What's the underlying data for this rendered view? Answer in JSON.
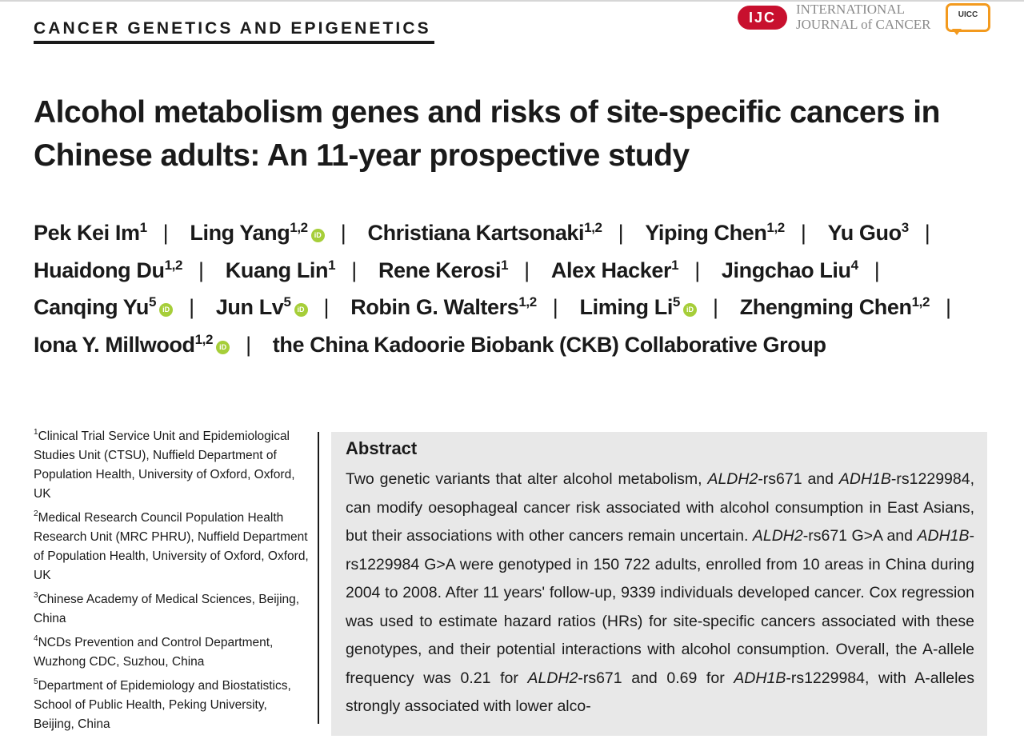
{
  "header": {
    "section_label": "CANCER GENETICS AND EPIGENETICS",
    "journal_abbrev": "IJC",
    "journal_name_line1": "INTERNATIONAL",
    "journal_name_line2": "JOURNAL of CANCER",
    "uicc_label": "UICC",
    "brand_color": "#c8102e",
    "uicc_color": "#f39a1e"
  },
  "title": "Alcohol metabolism genes and risks of site-specific cancers in Chinese adults: An 11-year prospective study",
  "authors": [
    {
      "name": "Pek Kei Im",
      "aff": "1",
      "orcid": false
    },
    {
      "name": "Ling Yang",
      "aff": "1,2",
      "orcid": true
    },
    {
      "name": "Christiana Kartsonaki",
      "aff": "1,2",
      "orcid": false
    },
    {
      "name": "Yiping Chen",
      "aff": "1,2",
      "orcid": false
    },
    {
      "name": "Yu Guo",
      "aff": "3",
      "orcid": false
    },
    {
      "name": "Huaidong Du",
      "aff": "1,2",
      "orcid": false
    },
    {
      "name": "Kuang Lin",
      "aff": "1",
      "orcid": false
    },
    {
      "name": "Rene Kerosi",
      "aff": "1",
      "orcid": false
    },
    {
      "name": "Alex Hacker",
      "aff": "1",
      "orcid": false
    },
    {
      "name": "Jingchao Liu",
      "aff": "4",
      "orcid": false
    },
    {
      "name": "Canqing Yu",
      "aff": "5",
      "orcid": true
    },
    {
      "name": "Jun Lv",
      "aff": "5",
      "orcid": true
    },
    {
      "name": "Robin G. Walters",
      "aff": "1,2",
      "orcid": false
    },
    {
      "name": "Liming Li",
      "aff": "5",
      "orcid": true
    },
    {
      "name": "Zhengming Chen",
      "aff": "1,2",
      "orcid": false
    },
    {
      "name": "Iona Y. Millwood",
      "aff": "1,2",
      "orcid": true
    }
  ],
  "collab_group": "the China Kadoorie Biobank (CKB) Collaborative Group",
  "orcid_icon_label": "iD",
  "orcid_color": "#a6ce39",
  "affiliations": [
    {
      "num": "1",
      "text": "Clinical Trial Service Unit and Epidemiological Studies Unit (CTSU), Nuffield Department of Population Health, University of Oxford, Oxford, UK"
    },
    {
      "num": "2",
      "text": "Medical Research Council Population Health Research Unit (MRC PHRU), Nuffield Department of Population Health, University of Oxford, Oxford, UK"
    },
    {
      "num": "3",
      "text": "Chinese Academy of Medical Sciences, Beijing, China"
    },
    {
      "num": "4",
      "text": "NCDs Prevention and Control Department, Wuzhong CDC, Suzhou, China"
    },
    {
      "num": "5",
      "text": "Department of Epidemiology and Biostatistics, School of Public Health, Peking University, Beijing, China"
    }
  ],
  "abstract": {
    "heading": "Abstract",
    "segments": [
      {
        "t": "Two genetic variants that alter alcohol metabolism, "
      },
      {
        "t": "ALDH2",
        "i": true
      },
      {
        "t": "-rs671 and "
      },
      {
        "t": "ADH1B",
        "i": true
      },
      {
        "t": "-rs1229984, can modify oesophageal cancer risk associated with alcohol consumption in East Asians, but their associations with other cancers remain uncertain. "
      },
      {
        "t": "ALDH2",
        "i": true
      },
      {
        "t": "-rs671 G>A and "
      },
      {
        "t": "ADH1B",
        "i": true
      },
      {
        "t": "-rs1229984 G>A were genotyped in 150 722 adults, enrolled from 10 areas in China during 2004 to 2008. After 11 years' follow-up, 9339 individuals developed cancer. Cox regression was used to estimate hazard ratios (HRs) for site-specific cancers associated with these genotypes, and their potential interactions with alcohol consumption. Overall, the A-allele frequency was 0.21 for "
      },
      {
        "t": "ALDH2",
        "i": true
      },
      {
        "t": "-rs671 and 0.69 for "
      },
      {
        "t": "ADH1B",
        "i": true
      },
      {
        "t": "-rs1229984, with A-alleles strongly associated with lower alco-"
      }
    ]
  }
}
